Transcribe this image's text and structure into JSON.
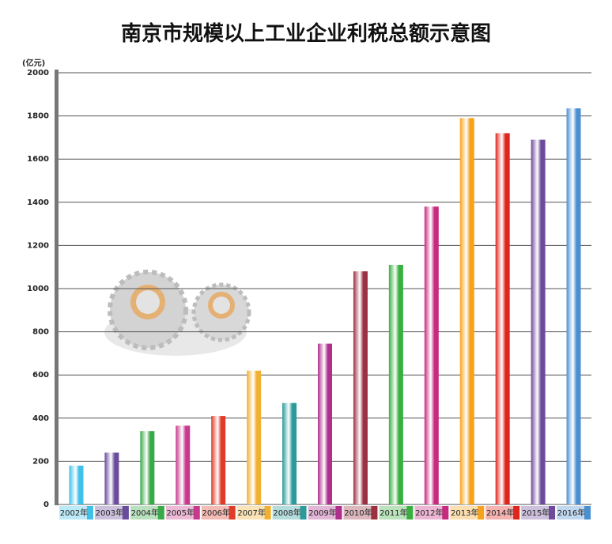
{
  "chart_data": {
    "type": "bar",
    "title": "南京市规模以上工业企业利税总额示意图",
    "y_label": "(亿元)",
    "categories": [
      "2002年",
      "2003年",
      "2004年",
      "2005年",
      "2006年",
      "2007年",
      "2008年",
      "2009年",
      "2010年",
      "2011年",
      "2012年",
      "2013年",
      "2014年",
      "2015年",
      "2016年"
    ],
    "values": [
      180,
      240,
      340,
      365,
      410,
      620,
      470,
      745,
      1080,
      1110,
      1380,
      1790,
      1720,
      1690,
      1835
    ],
    "colors": [
      "#3fc0e8",
      "#6a4c9c",
      "#3aaa48",
      "#c8388c",
      "#e03a28",
      "#f0b030",
      "#2a9a9a",
      "#b02e8c",
      "#9a3040",
      "#38b040",
      "#c82a80",
      "#f7a21c",
      "#e0261c",
      "#6e4a9a",
      "#4a90d0"
    ],
    "ylim": [
      0,
      2000
    ],
    "yticks": [
      0,
      200,
      400,
      600,
      800,
      1000,
      1200,
      1400,
      1600,
      1800,
      2000
    ],
    "grid": true
  }
}
